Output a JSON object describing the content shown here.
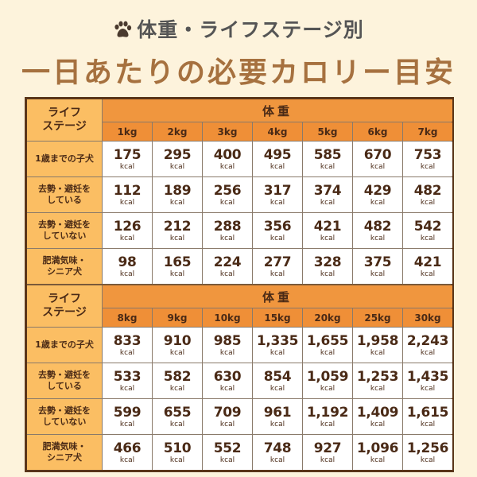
{
  "header": {
    "title": "体重・ライフステージ別",
    "subtitle": "一日あたりの必要カロリー目安",
    "icon": "paw-icon"
  },
  "colors": {
    "background": "#fdf3dc",
    "header_orange": "#f0963e",
    "stage_column": "#fbbe63",
    "border": "#5a3519",
    "subtitle": "#a6713f"
  },
  "table": {
    "stage_header": "ライフ\nステージ",
    "weight_header": "体重",
    "unit": "kcal",
    "row_labels": [
      "1歳までの子犬",
      "去勢・避妊を\nしている",
      "去勢・避妊を\nしていない",
      "肥満気味・\nシニア犬"
    ],
    "blocks": [
      {
        "weights": [
          "1kg",
          "2kg",
          "3kg",
          "4kg",
          "5kg",
          "6kg",
          "7kg"
        ],
        "rows": [
          [
            "175",
            "295",
            "400",
            "495",
            "585",
            "670",
            "753"
          ],
          [
            "112",
            "189",
            "256",
            "317",
            "374",
            "429",
            "482"
          ],
          [
            "126",
            "212",
            "288",
            "356",
            "421",
            "482",
            "542"
          ],
          [
            "98",
            "165",
            "224",
            "277",
            "328",
            "375",
            "421"
          ]
        ]
      },
      {
        "weights": [
          "8kg",
          "9kg",
          "10kg",
          "15kg",
          "20kg",
          "25kg",
          "30kg"
        ],
        "rows": [
          [
            "833",
            "910",
            "985",
            "1,335",
            "1,655",
            "1,958",
            "2,243"
          ],
          [
            "533",
            "582",
            "630",
            "854",
            "1,059",
            "1,253",
            "1,435"
          ],
          [
            "599",
            "655",
            "709",
            "961",
            "1,192",
            "1,409",
            "1,615"
          ],
          [
            "466",
            "510",
            "552",
            "748",
            "927",
            "1,096",
            "1,256"
          ]
        ]
      }
    ]
  }
}
